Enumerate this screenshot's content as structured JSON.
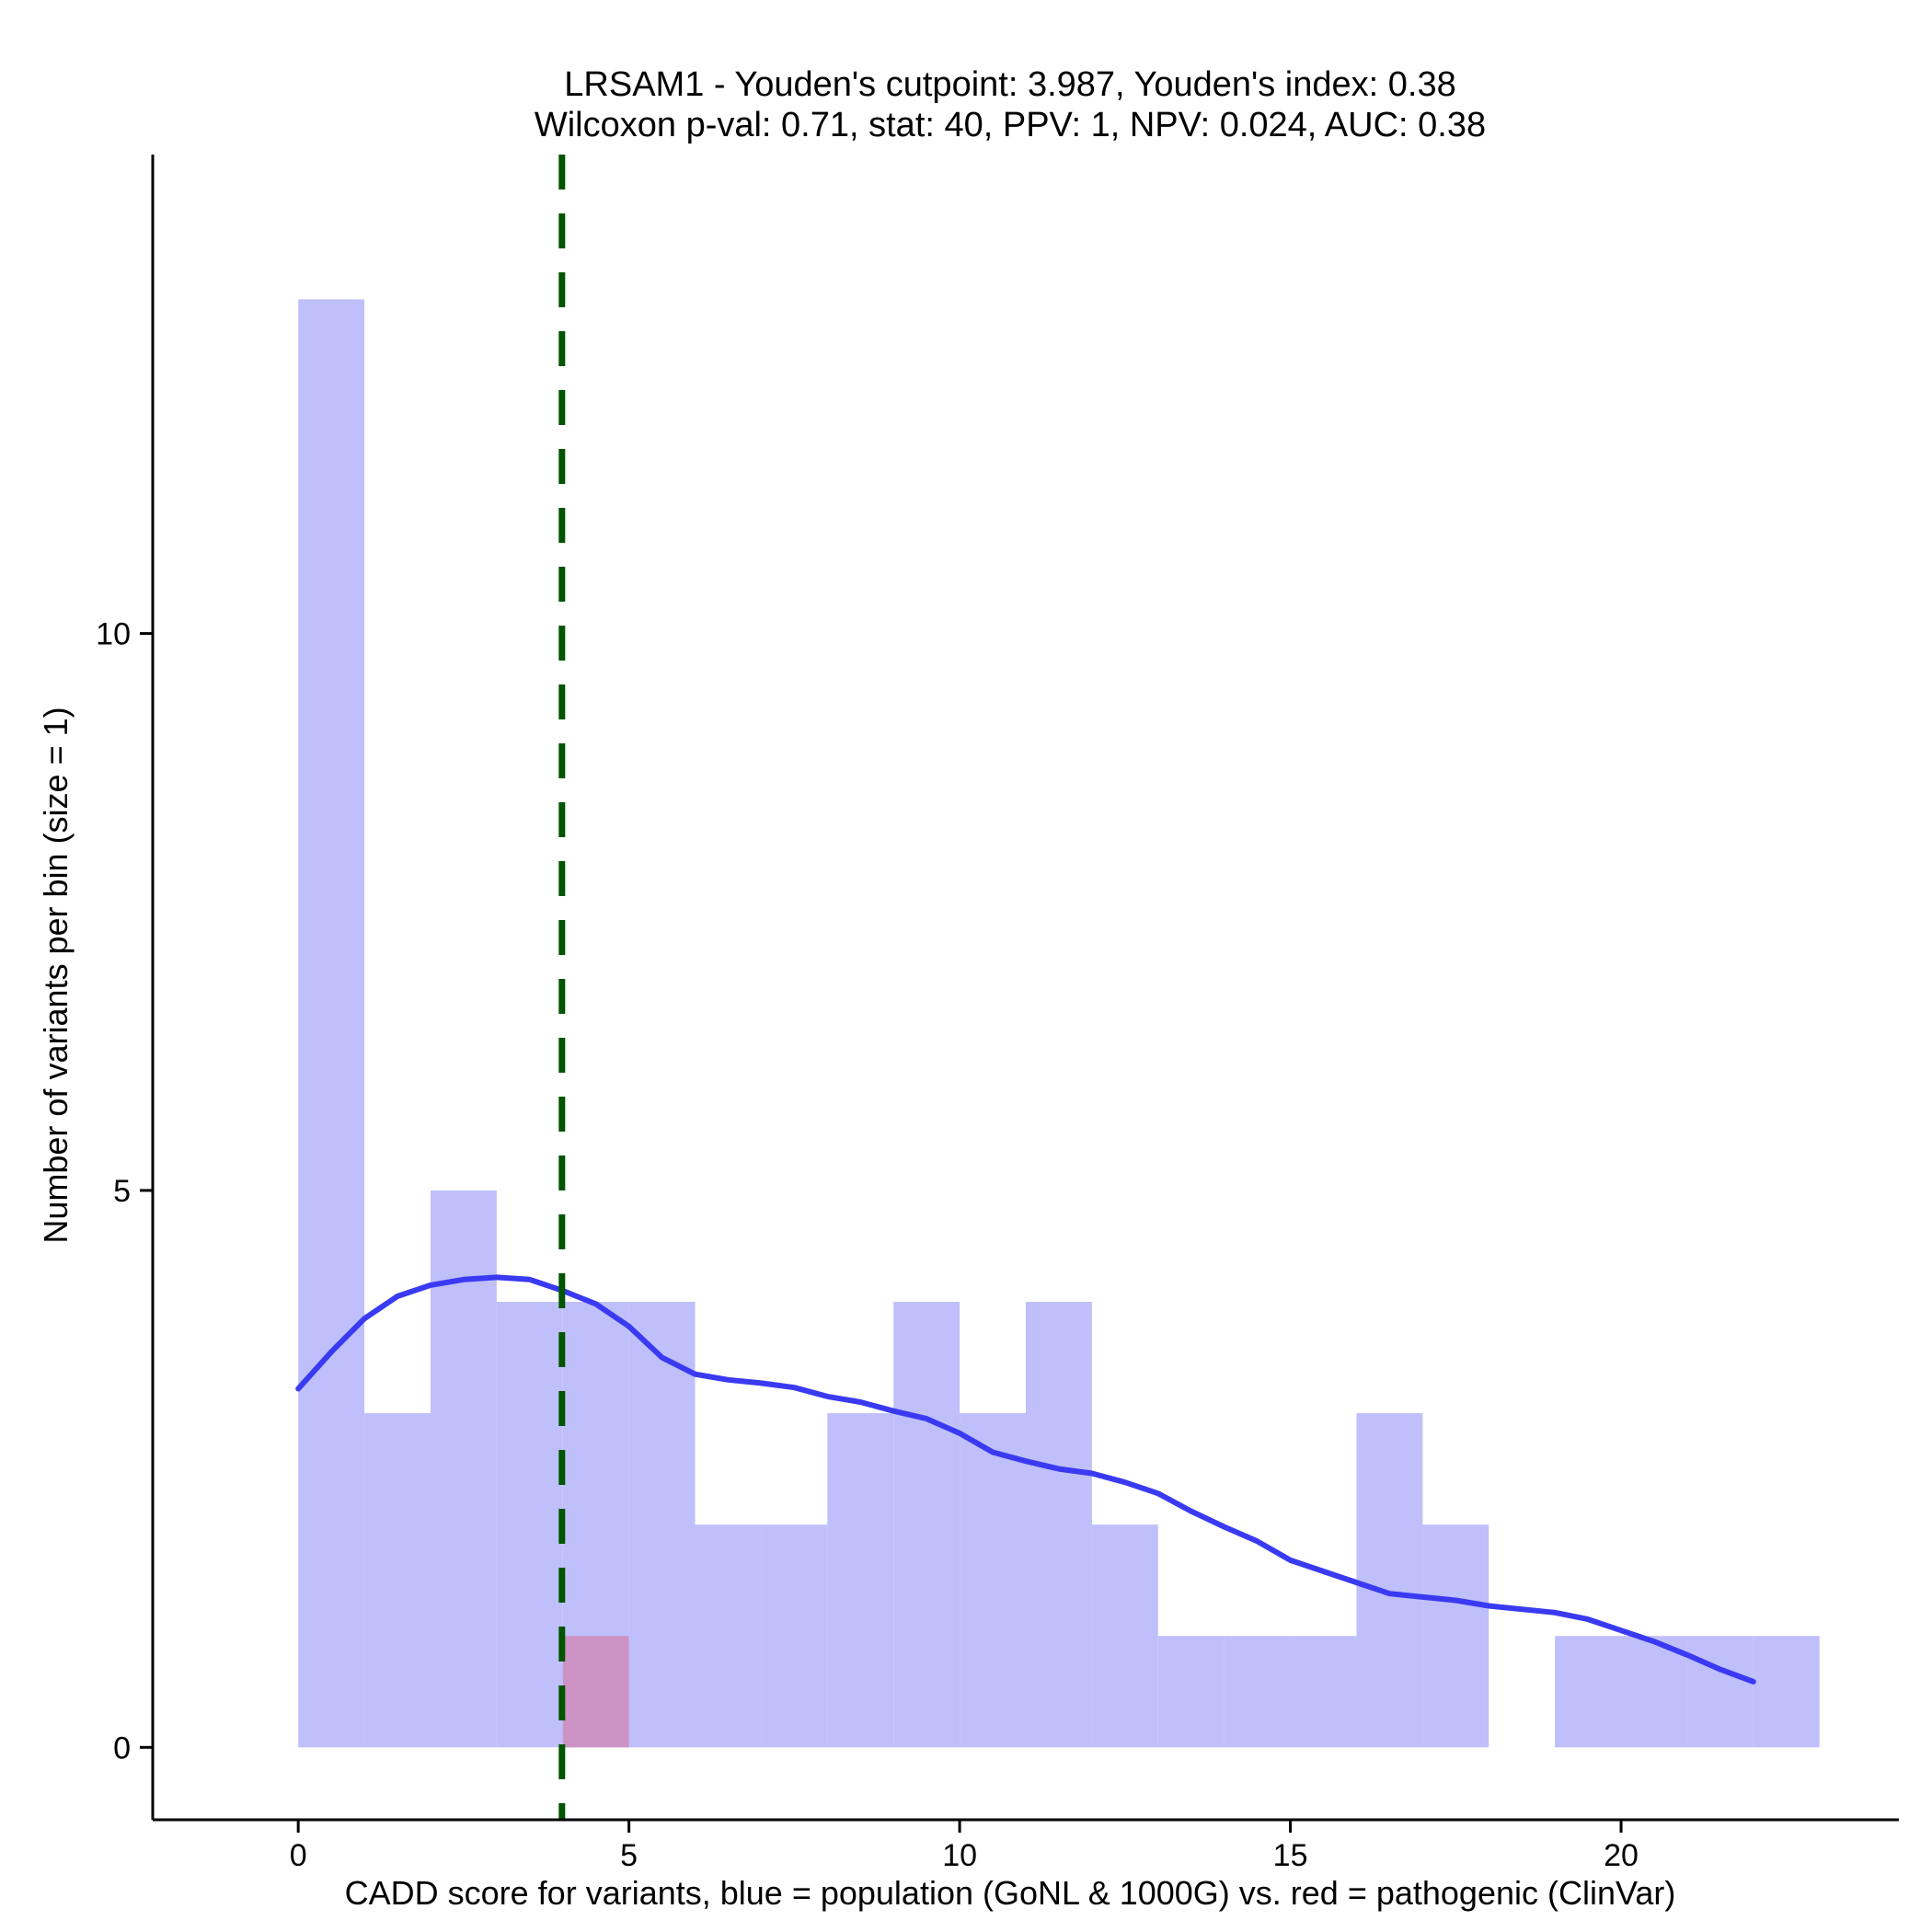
{
  "chart_data": {
    "type": "bar",
    "title_lines": [
      "LRSAM1 - Youden's cutpoint: 3.987, Youden's index: 0.38",
      "Wilcoxon p-val: 0.71, stat: 40, PPV: 1, NPV: 0.024, AUC: 0.38"
    ],
    "xlabel": "CADD score for variants, blue = population (GoNL & 1000G) vs. red = pathogenic (ClinVar)",
    "ylabel": "Number of variants per bin (size = 1)",
    "xlim": [
      -2.2,
      24.2
    ],
    "ylim": [
      -0.65,
      14.3
    ],
    "xticks": [
      0,
      5,
      10,
      15,
      20
    ],
    "yticks": [
      0,
      5,
      10
    ],
    "bin_size": 1,
    "colors": {
      "population": "#bfbffc",
      "pathogenic": "#cc93c4",
      "density": "#3a3af2",
      "cutpoint": "#005500",
      "axis": "#000000"
    },
    "series": [
      {
        "name": "population",
        "bin_starts": [
          0,
          1,
          2,
          3,
          4,
          5,
          6,
          7,
          8,
          9,
          10,
          11,
          12,
          13,
          14,
          15,
          16,
          17,
          18,
          19,
          20,
          21,
          22
        ],
        "counts": [
          13,
          3,
          5,
          4,
          4,
          4,
          2,
          2,
          3,
          4,
          3,
          4,
          2,
          1,
          1,
          1,
          3,
          2,
          0,
          1,
          1,
          1,
          1
        ]
      },
      {
        "name": "pathogenic",
        "bin_starts": [
          4
        ],
        "counts": [
          1
        ]
      }
    ],
    "density_curve": {
      "x": [
        0,
        0.5,
        1,
        1.5,
        2,
        2.5,
        3,
        3.5,
        4,
        4.5,
        5,
        5.5,
        6,
        6.5,
        7,
        7.5,
        8,
        8.5,
        9,
        9.5,
        10,
        10.5,
        11,
        11.5,
        12,
        12.5,
        13,
        13.5,
        14,
        14.5,
        15,
        15.5,
        16,
        16.5,
        17,
        17.5,
        18,
        18.5,
        19,
        19.5,
        20,
        20.5,
        21,
        21.5,
        22
      ],
      "y": [
        3.22,
        3.55,
        3.85,
        4.05,
        4.15,
        4.2,
        4.22,
        4.2,
        4.1,
        3.98,
        3.78,
        3.5,
        3.35,
        3.3,
        3.27,
        3.23,
        3.15,
        3.1,
        3.02,
        2.95,
        2.82,
        2.65,
        2.57,
        2.5,
        2.46,
        2.38,
        2.28,
        2.12,
        1.98,
        1.85,
        1.68,
        1.58,
        1.48,
        1.38,
        1.35,
        1.32,
        1.27,
        1.24,
        1.21,
        1.15,
        1.05,
        0.95,
        0.83,
        0.7,
        0.59
      ]
    },
    "cutpoint": 3.987,
    "grid": false
  }
}
